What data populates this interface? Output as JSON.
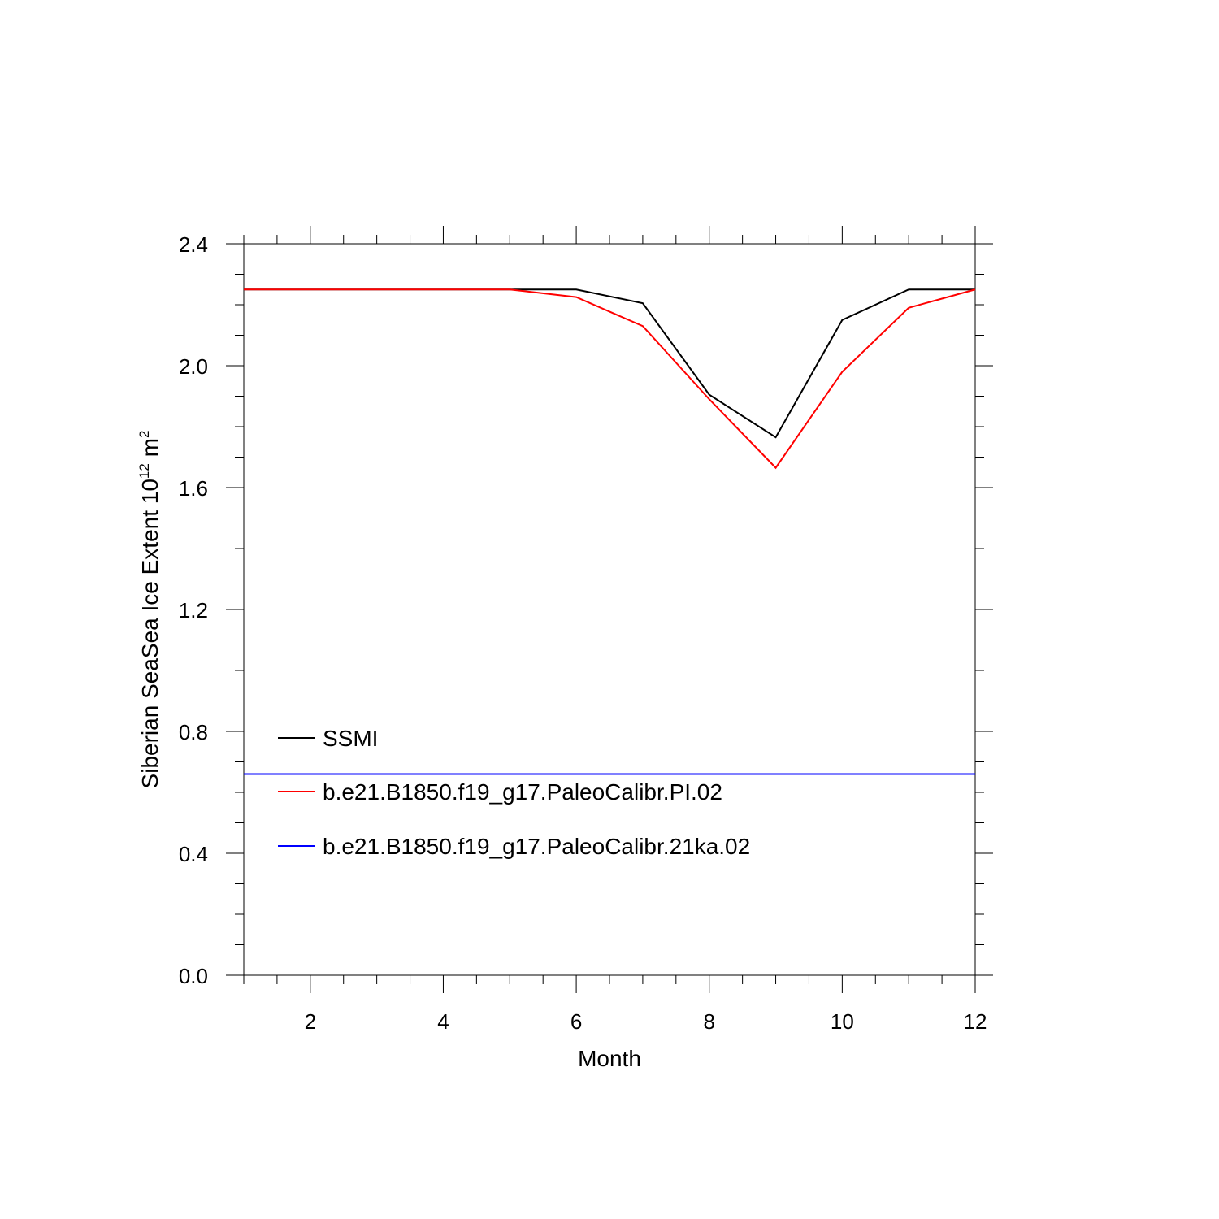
{
  "chart_data": {
    "type": "line",
    "xlabel": "Month",
    "ylabel": {
      "main": "Siberian SeaSea Ice Extent 10",
      "sup": "12",
      "unit": " m",
      "unit_sup": "2"
    },
    "xlim": [
      1,
      12
    ],
    "ylim": [
      0.0,
      2.4
    ],
    "x_ticks": [
      2,
      4,
      6,
      8,
      10,
      12
    ],
    "x_tick_labels": [
      "2",
      "4",
      "6",
      "8",
      "10",
      "12"
    ],
    "y_ticks": [
      0.0,
      0.4,
      0.8,
      1.2,
      1.6,
      2.0,
      2.4
    ],
    "y_tick_labels": [
      "0.0",
      "0.4",
      "0.8",
      "1.2",
      "1.6",
      "2.0",
      "2.4"
    ],
    "x": [
      1,
      2,
      3,
      4,
      5,
      6,
      7,
      8,
      9,
      10,
      11,
      12
    ],
    "series": [
      {
        "name": "SSMI",
        "color": "#000000",
        "values": [
          2.25,
          2.25,
          2.25,
          2.25,
          2.25,
          2.25,
          2.205,
          1.905,
          1.765,
          2.15,
          2.25,
          2.25
        ]
      },
      {
        "name": "b.e21.B1850.f19_g17.PaleoCalibr.PI.02",
        "color": "#ff0000",
        "values": [
          2.25,
          2.25,
          2.25,
          2.25,
          2.25,
          2.225,
          2.13,
          1.89,
          1.665,
          1.98,
          2.19,
          2.25
        ]
      },
      {
        "name": "b.e21.B1850.f19_g17.PaleoCalibr.21ka.02",
        "color": "#0000ff",
        "values": [
          0.66,
          0.66,
          0.66,
          0.66,
          0.66,
          0.66,
          0.66,
          0.66,
          0.66,
          0.66,
          0.66,
          0.66
        ]
      }
    ],
    "legend_position": "lower-left",
    "grid": false
  }
}
